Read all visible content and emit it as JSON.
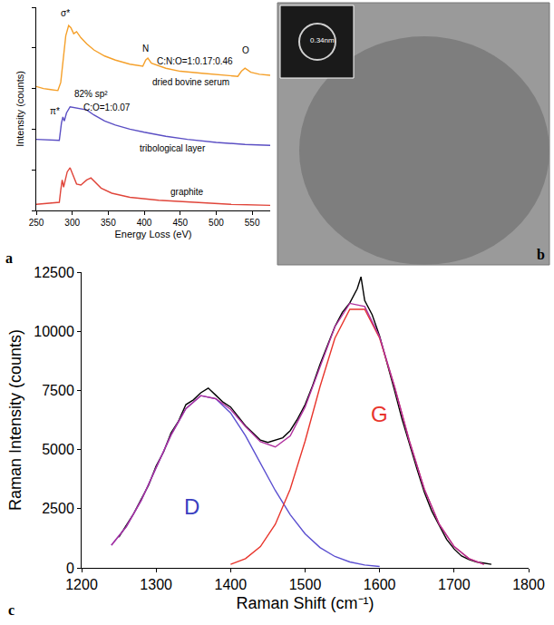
{
  "chart_data": [
    {
      "type": "line",
      "panel": "a",
      "x_label": "Energy Loss (eV)",
      "y_label": "Intensity (counts)",
      "xlim": [
        250,
        575
      ],
      "xticks": [
        250,
        300,
        350,
        400,
        450,
        500,
        550
      ],
      "ylim": [
        0,
        10
      ],
      "yticks": [
        0,
        2,
        4,
        6,
        8,
        10
      ],
      "tick_labels": "x",
      "grid": false,
      "series": [
        {
          "color": "#f5a02a",
          "x": [
            250,
            260,
            270,
            280,
            284,
            286,
            288,
            291,
            295,
            298,
            302,
            306,
            312,
            320,
            330,
            345,
            360,
            380,
            398,
            402,
            405,
            410,
            430,
            450,
            480,
            510,
            530,
            535,
            540,
            548,
            560,
            575
          ],
          "values": [
            6.1,
            6.0,
            5.95,
            5.9,
            6.3,
            6.9,
            7.5,
            8.6,
            9.1,
            9.0,
            8.7,
            8.8,
            8.5,
            8.2,
            7.9,
            7.6,
            7.4,
            7.2,
            7.1,
            7.4,
            7.5,
            7.25,
            7.0,
            6.85,
            6.75,
            6.65,
            6.6,
            6.85,
            7.0,
            6.8,
            6.7,
            6.65
          ]
        },
        {
          "color": "#5b4fc4",
          "x": [
            250,
            270,
            282,
            285,
            287,
            289,
            292,
            297,
            305,
            312,
            320,
            330,
            345,
            360,
            380,
            400,
            430,
            460,
            500,
            540,
            575
          ],
          "values": [
            3.5,
            3.45,
            3.45,
            4.3,
            4.6,
            4.4,
            4.8,
            5.1,
            5.05,
            5.0,
            4.95,
            4.7,
            4.4,
            4.2,
            4.0,
            3.85,
            3.65,
            3.5,
            3.35,
            3.25,
            3.2
          ]
        },
        {
          "color": "#e0453a",
          "x": [
            250,
            270,
            282,
            284,
            286,
            288,
            290,
            293,
            297,
            301,
            306,
            312,
            320,
            326,
            332,
            340,
            355,
            380,
            420,
            470,
            520,
            575
          ],
          "values": [
            0.3,
            0.35,
            0.4,
            1.0,
            1.5,
            1.15,
            1.4,
            1.9,
            2.1,
            1.7,
            1.3,
            1.25,
            1.5,
            1.6,
            1.4,
            1.1,
            0.85,
            0.65,
            0.5,
            0.4,
            0.3,
            0.25
          ]
        }
      ],
      "annotations": [
        {
          "text": "σ*",
          "x": 290,
          "y": 9.7
        },
        {
          "text": "π*",
          "x": 276,
          "y": 4.9
        },
        {
          "text": "82% sp²",
          "x": 326,
          "y": 5.75
        },
        {
          "text": "C:O=1:0.07",
          "x": 348,
          "y": 5.05
        },
        {
          "text": "tribological layer",
          "x": 440,
          "y": 3.05
        },
        {
          "text": "N",
          "x": 402,
          "y": 7.95
        },
        {
          "text": "O",
          "x": 541,
          "y": 7.9
        },
        {
          "text": "C:N:O=1:0.17:0.46",
          "x": 470,
          "y": 7.35
        },
        {
          "text": "dried bovine serum",
          "x": 465,
          "y": 6.3
        },
        {
          "text": "graphite",
          "x": 460,
          "y": 0.9
        }
      ]
    },
    {
      "type": "line",
      "panel": "c",
      "x_label": "Raman Shift (cm⁻¹)",
      "y_label": "Raman Intensity (counts)",
      "xlim": [
        1200,
        1800
      ],
      "xticks": [
        1200,
        1300,
        1400,
        1500,
        1600,
        1700,
        1800
      ],
      "ylim": [
        0,
        12500
      ],
      "yticks": [
        0,
        2500,
        5000,
        7500,
        10000,
        12500
      ],
      "grid": false,
      "series": [
        {
          "color": "#000000",
          "x": [
            1250,
            1260,
            1270,
            1280,
            1290,
            1300,
            1310,
            1320,
            1330,
            1340,
            1350,
            1360,
            1370,
            1380,
            1390,
            1400,
            1410,
            1420,
            1430,
            1440,
            1450,
            1460,
            1470,
            1480,
            1490,
            1500,
            1510,
            1520,
            1530,
            1540,
            1550,
            1560,
            1570,
            1575,
            1580,
            1590,
            1600,
            1610,
            1620,
            1630,
            1640,
            1650,
            1660,
            1670,
            1680,
            1690,
            1700,
            1710,
            1720,
            1730,
            1740,
            1750
          ],
          "values": [
            1300,
            1800,
            2300,
            2900,
            3500,
            4300,
            4900,
            5700,
            6200,
            6900,
            7100,
            7400,
            7600,
            7300,
            7000,
            6800,
            6400,
            6000,
            5700,
            5400,
            5300,
            5400,
            5500,
            5800,
            6300,
            6900,
            7700,
            8600,
            9400,
            10200,
            10800,
            11200,
            11800,
            12300,
            11300,
            10700,
            9800,
            8700,
            7500,
            6300,
            5200,
            4200,
            3200,
            2400,
            1800,
            1200,
            800,
            500,
            350,
            250,
            200,
            150
          ]
        },
        {
          "color": "#5b4fd0",
          "x": [
            1240,
            1260,
            1280,
            1300,
            1320,
            1340,
            1360,
            1380,
            1400,
            1420,
            1440,
            1460,
            1480,
            1500,
            1520,
            1540,
            1560,
            1580,
            1600
          ],
          "values": [
            960,
            1740,
            2850,
            4210,
            5610,
            6730,
            7280,
            7150,
            6550,
            5580,
            4430,
            3270,
            2250,
            1440,
            860,
            480,
            250,
            120,
            55
          ]
        },
        {
          "color": "#e8352c",
          "x": [
            1400,
            1420,
            1440,
            1460,
            1480,
            1500,
            1520,
            1540,
            1560,
            1580,
            1600,
            1620,
            1640,
            1660,
            1680,
            1700,
            1720,
            1740
          ],
          "values": [
            150,
            390,
            900,
            1840,
            3330,
            5360,
            7660,
            9710,
            10930,
            10930,
            9710,
            7660,
            5360,
            3330,
            1840,
            900,
            390,
            150
          ]
        },
        {
          "color": "#b0309e",
          "x": [
            1240,
            1260,
            1280,
            1300,
            1320,
            1340,
            1360,
            1380,
            1400,
            1420,
            1440,
            1460,
            1480,
            1500,
            1520,
            1540,
            1560,
            1580,
            1600,
            1620,
            1640,
            1660,
            1680,
            1700,
            1720,
            1740
          ],
          "values": [
            960,
            1740,
            2850,
            4210,
            5610,
            6730,
            7280,
            7150,
            6700,
            5970,
            5330,
            5110,
            5580,
            6800,
            8520,
            10190,
            11180,
            11050,
            9770,
            7660,
            5360,
            3330,
            1840,
            900,
            390,
            150
          ]
        }
      ],
      "annotations": [
        {
          "text": "D",
          "x": 1348,
          "y": 2600,
          "color": "#3b3fc0"
        },
        {
          "text": "G",
          "x": 1600,
          "y": 6500,
          "color": "#e8352c"
        }
      ]
    }
  ],
  "image": {
    "panel": "b",
    "inset_label": "0.34nm"
  }
}
